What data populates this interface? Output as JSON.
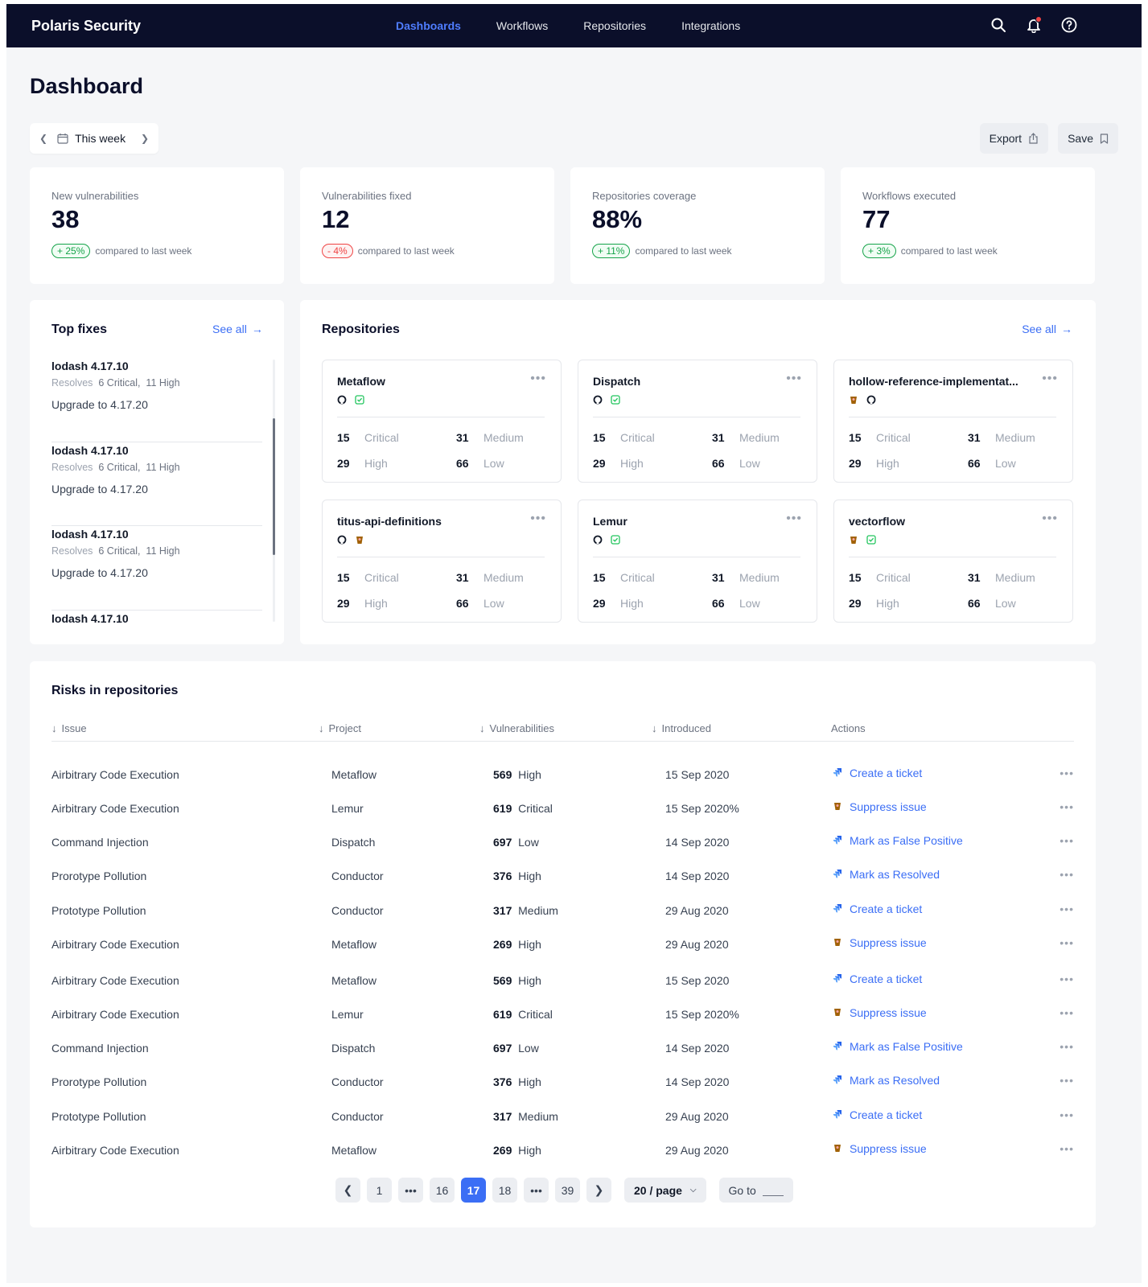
{
  "nav": {
    "brand": "Polaris Security",
    "links": [
      "Dashboards",
      "Workflows",
      "Repositories",
      "Integrations"
    ],
    "active": "Dashboards",
    "icons": [
      "search-icon",
      "bell-icon",
      "help-icon"
    ]
  },
  "page": {
    "title": "Dashboard"
  },
  "toolbar": {
    "week_label": "This week",
    "export_label": "Export",
    "save_label": "Save"
  },
  "stats": [
    {
      "label": "New vulnerabilities",
      "value": "38",
      "delta": "+ 25%",
      "trend": "up",
      "compare": "compared to last week"
    },
    {
      "label": "Vulnerabilities fixed",
      "value": "12",
      "delta": "- 4%",
      "trend": "down",
      "compare": "compared to last week"
    },
    {
      "label": "Repositories coverage",
      "value": "88%",
      "delta": "+ 11%",
      "trend": "up",
      "compare": "compared to last week"
    },
    {
      "label": "Workflows executed",
      "value": "77",
      "delta": "+ 3%",
      "trend": "up",
      "compare": "compared to last week"
    }
  ],
  "top_fixes": {
    "title": "Top fixes",
    "see_all": "See all",
    "items": [
      {
        "name": "lodash 4.17.10",
        "resolves": "Resolves",
        "critical": "6 Critical,",
        "high": "11 High",
        "upgrade": "Upgrade to 4.17.20"
      },
      {
        "name": "lodash 4.17.10",
        "resolves": "Resolves",
        "critical": "6 Critical,",
        "high": "11 High",
        "upgrade": "Upgrade to 4.17.20"
      },
      {
        "name": "lodash 4.17.10",
        "resolves": "Resolves",
        "critical": "6 Critical,",
        "high": "11 High",
        "upgrade": "Upgrade to 4.17.20"
      },
      {
        "name": "lodash 4.17.10",
        "resolves": "",
        "critical": "",
        "high": "",
        "upgrade": ""
      }
    ]
  },
  "repositories": {
    "title": "Repositories",
    "see_all": "See all",
    "stat_labels": {
      "critical": "Critical",
      "medium": "Medium",
      "high": "High",
      "low": "Low"
    },
    "items": [
      {
        "name": "Metaflow",
        "icons": [
          "github-icon",
          "check-icon"
        ],
        "critical": "15",
        "medium": "31",
        "high": "29",
        "low": "66"
      },
      {
        "name": "Dispatch",
        "icons": [
          "github-icon",
          "check-icon"
        ],
        "critical": "15",
        "medium": "31",
        "high": "29",
        "low": "66"
      },
      {
        "name": "hollow-reference-implementat...",
        "icons": [
          "bitbucket-icon",
          "github-icon"
        ],
        "critical": "15",
        "medium": "31",
        "high": "29",
        "low": "66"
      },
      {
        "name": "titus-api-definitions",
        "icons": [
          "github-icon",
          "bitbucket-icon"
        ],
        "critical": "15",
        "medium": "31",
        "high": "29",
        "low": "66"
      },
      {
        "name": "Lemur",
        "icons": [
          "github-icon",
          "check-icon"
        ],
        "critical": "15",
        "medium": "31",
        "high": "29",
        "low": "66"
      },
      {
        "name": "vectorflow",
        "icons": [
          "bitbucket-icon",
          "check-icon"
        ],
        "critical": "15",
        "medium": "31",
        "high": "29",
        "low": "66"
      }
    ]
  },
  "risks": {
    "title": "Risks in repositories",
    "columns": [
      "Issue",
      "Project",
      "Vulnerabilities",
      "Introduced",
      "Actions"
    ],
    "rows": [
      {
        "issue": "Airbitrary Code Execution",
        "project": "Metaflow",
        "count": "569",
        "severity": "High",
        "introduced": "15 Sep 2020",
        "action_icon": "jira-icon",
        "action": "Create a ticket"
      },
      {
        "issue": "Airbitrary Code Execution",
        "project": "Lemur",
        "count": "619",
        "severity": "Critical",
        "introduced": "15 Sep 2020%",
        "action_icon": "bitbucket-icon",
        "action": "Suppress issue"
      },
      {
        "issue": "Command Injection",
        "project": "Dispatch",
        "count": "697",
        "severity": "Low",
        "introduced": "14 Sep 2020",
        "action_icon": "jira-icon",
        "action": "Mark as False Positive"
      },
      {
        "issue": "Prorotype Pollution",
        "project": "Conductor",
        "count": "376",
        "severity": "High",
        "introduced": "14 Sep 2020",
        "action_icon": "jira-icon",
        "action": "Mark as Resolved"
      },
      {
        "issue": "Prototype Pollution",
        "project": "Conductor",
        "count": "317",
        "severity": "Medium",
        "introduced": "29 Aug 2020",
        "action_icon": "jira-icon",
        "action": "Create a ticket"
      },
      {
        "issue": "Airbitrary Code Execution",
        "project": "Metaflow",
        "count": "269",
        "severity": "High",
        "introduced": "29 Aug 2020",
        "action_icon": "bitbucket-icon",
        "action": "Suppress issue"
      },
      {
        "issue": "Airbitrary Code Execution",
        "project": "Metaflow",
        "count": "569",
        "severity": "High",
        "introduced": "15 Sep 2020",
        "action_icon": "jira-icon",
        "action": "Create a ticket"
      },
      {
        "issue": "Airbitrary Code Execution",
        "project": "Lemur",
        "count": "619",
        "severity": "Critical",
        "introduced": "15 Sep 2020%",
        "action_icon": "bitbucket-icon",
        "action": "Suppress issue"
      },
      {
        "issue": "Command Injection",
        "project": "Dispatch",
        "count": "697",
        "severity": "Low",
        "introduced": "14 Sep 2020",
        "action_icon": "jira-icon",
        "action": "Mark as False Positive"
      },
      {
        "issue": "Prorotype Pollution",
        "project": "Conductor",
        "count": "376",
        "severity": "High",
        "introduced": "14 Sep 2020",
        "action_icon": "jira-icon",
        "action": "Mark as Resolved"
      },
      {
        "issue": "Prototype Pollution",
        "project": "Conductor",
        "count": "317",
        "severity": "Medium",
        "introduced": "29 Aug 2020",
        "action_icon": "jira-icon",
        "action": "Create a ticket"
      },
      {
        "issue": "Airbitrary Code Execution",
        "project": "Metaflow",
        "count": "269",
        "severity": "High",
        "introduced": "29 Aug 2020",
        "action_icon": "bitbucket-icon",
        "action": "Suppress issue"
      }
    ]
  },
  "pagination": {
    "pages": [
      "1",
      "•••",
      "16",
      "17",
      "18",
      "•••",
      "39"
    ],
    "current": "17",
    "page_size": "20 / page",
    "goto_label": "Go to"
  },
  "colors": {
    "nav_bg": "#0b0f2a",
    "accent": "#3b6ef5",
    "up": "#16a34a",
    "down": "#ef4444"
  }
}
